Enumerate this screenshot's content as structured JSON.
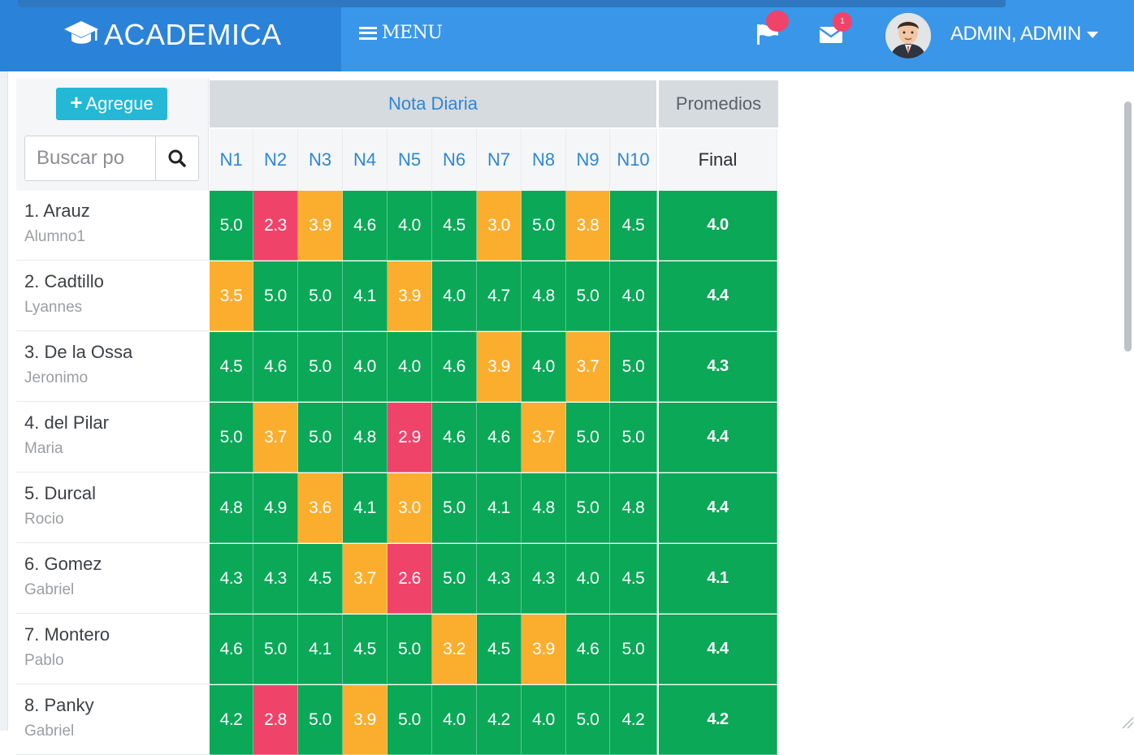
{
  "app": {
    "brand": "ACADEMICA",
    "menu_label": "MENU"
  },
  "header": {
    "flag_badge": "",
    "mail_badge": "1",
    "user_name": "ADMIN, ADMIN"
  },
  "toolbar": {
    "add_label": "Agregue",
    "search_placeholder": "Buscar po"
  },
  "groups": {
    "nota": "Nota Diaria",
    "promedios": "Promedios"
  },
  "columns": [
    "N1",
    "N2",
    "N3",
    "N4",
    "N5",
    "N6",
    "N7",
    "N8",
    "N9",
    "N10"
  ],
  "final_label": "Final",
  "colors": {
    "high": "#0aa857",
    "mid": "#fbae2e",
    "low": "#f0436a"
  },
  "students": [
    {
      "last": "1. Arauz",
      "first": "Alumno1",
      "grades": [
        "5.0",
        "2.3",
        "3.9",
        "4.6",
        "4.0",
        "4.5",
        "3.0",
        "5.0",
        "3.8",
        "4.5"
      ],
      "final": "4.0"
    },
    {
      "last": "2. Cadtillo",
      "first": "Lyannes",
      "grades": [
        "3.5",
        "5.0",
        "5.0",
        "4.1",
        "3.9",
        "4.0",
        "4.7",
        "4.8",
        "5.0",
        "4.0"
      ],
      "final": "4.4"
    },
    {
      "last": "3. De la Ossa",
      "first": "Jeronimo",
      "grades": [
        "4.5",
        "4.6",
        "5.0",
        "4.0",
        "4.0",
        "4.6",
        "3.9",
        "4.0",
        "3.7",
        "5.0"
      ],
      "final": "4.3"
    },
    {
      "last": "4. del Pilar",
      "first": "Maria",
      "grades": [
        "5.0",
        "3.7",
        "5.0",
        "4.8",
        "2.9",
        "4.6",
        "4.6",
        "3.7",
        "5.0",
        "5.0"
      ],
      "final": "4.4"
    },
    {
      "last": "5. Durcal",
      "first": "Rocio",
      "grades": [
        "4.8",
        "4.9",
        "3.6",
        "4.1",
        "3.0",
        "5.0",
        "4.1",
        "4.8",
        "5.0",
        "4.8"
      ],
      "final": "4.4"
    },
    {
      "last": "6. Gomez",
      "first": "Gabriel",
      "grades": [
        "4.3",
        "4.3",
        "4.5",
        "3.7",
        "2.6",
        "5.0",
        "4.3",
        "4.3",
        "4.0",
        "4.5"
      ],
      "final": "4.1"
    },
    {
      "last": "7. Montero",
      "first": "Pablo",
      "grades": [
        "4.6",
        "5.0",
        "4.1",
        "4.5",
        "5.0",
        "3.2",
        "4.5",
        "3.9",
        "4.6",
        "5.0"
      ],
      "final": "4.4"
    },
    {
      "last": "8. Panky",
      "first": "Gabriel",
      "grades": [
        "4.2",
        "2.8",
        "5.0",
        "3.9",
        "5.0",
        "4.0",
        "4.2",
        "4.0",
        "5.0",
        "4.2"
      ],
      "final": "4.2"
    }
  ]
}
